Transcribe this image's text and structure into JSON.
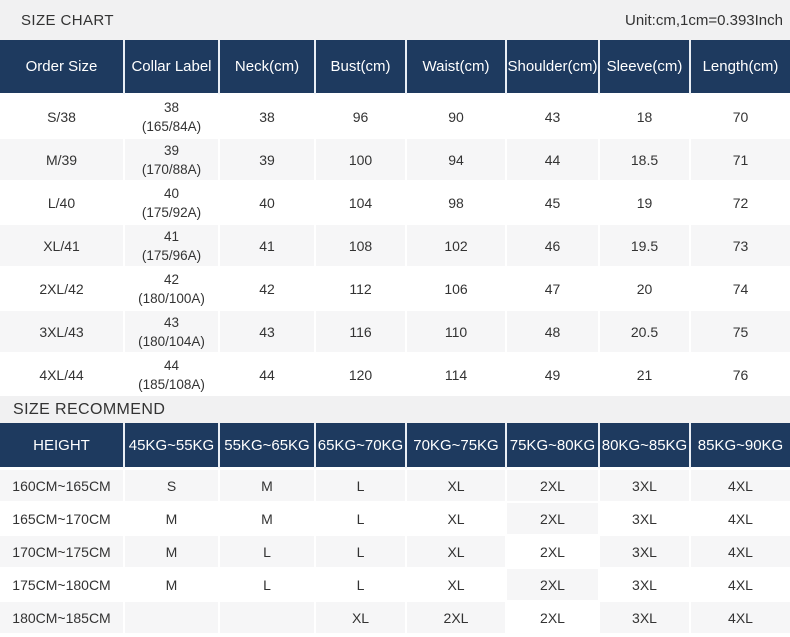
{
  "page": {
    "title": "SIZE CHART",
    "unit_note": "Unit:cm,1cm=0.393Inch",
    "recommend_title": "SIZE RECOMMEND"
  },
  "colors": {
    "header_navy": "#1e3a5f",
    "header_text": "#ffffff",
    "shaded_row": "#f6f6f7",
    "banner_bg": "#f1f1f2",
    "body_text": "#333333"
  },
  "chart_data": [
    {
      "type": "table",
      "name": "size_chart",
      "title": "SIZE CHART",
      "unit_note": "Unit:cm,1cm=0.393Inch",
      "headers": [
        "Order Size",
        "Collar Label",
        "Neck(cm)",
        "Bust(cm)",
        "Waist(cm)",
        "Shoulder(cm)",
        "Sleeve(cm)",
        "Length(cm)"
      ],
      "rows": [
        [
          "S/38",
          [
            "38",
            "(165/84A)"
          ],
          "38",
          "96",
          "90",
          "43",
          "18",
          "70"
        ],
        [
          "M/39",
          [
            "39",
            "(170/88A)"
          ],
          "39",
          "100",
          "94",
          "44",
          "18.5",
          "71"
        ],
        [
          "L/40",
          [
            "40",
            "(175/92A)"
          ],
          "40",
          "104",
          "98",
          "45",
          "19",
          "72"
        ],
        [
          "XL/41",
          [
            "41",
            "(175/96A)"
          ],
          "41",
          "108",
          "102",
          "46",
          "19.5",
          "73"
        ],
        [
          "2XL/42",
          [
            "42",
            "(180/100A)"
          ],
          "42",
          "112",
          "106",
          "47",
          "20",
          "74"
        ],
        [
          "3XL/43",
          [
            "43",
            "(180/104A)"
          ],
          "43",
          "116",
          "110",
          "48",
          "20.5",
          "75"
        ],
        [
          "4XL/44",
          [
            "44",
            "(185/108A)"
          ],
          "44",
          "120",
          "114",
          "49",
          "21",
          "76"
        ]
      ],
      "row_shading": "odd"
    },
    {
      "type": "table",
      "name": "size_recommend",
      "title": "SIZE RECOMMEND",
      "headers": [
        "HEIGHT",
        "45KG~55KG",
        "55KG~65KG",
        "65KG~70KG",
        "70KG~75KG",
        "75KG~80KG",
        "80KG~85KG",
        "85KG~90KG"
      ],
      "rows": [
        [
          "160CM~165CM",
          "S",
          "M",
          "L",
          "XL",
          "2XL",
          "3XL",
          "4XL"
        ],
        [
          "165CM~170CM",
          "M",
          "M",
          "L",
          "XL",
          "2XL",
          "3XL",
          "4XL"
        ],
        [
          "170CM~175CM",
          "M",
          "L",
          "L",
          "XL",
          "2XL",
          "3XL",
          "4XL"
        ],
        [
          "175CM~180CM",
          "M",
          "L",
          "L",
          "XL",
          "2XL",
          "3XL",
          "4XL"
        ],
        [
          "180CM~185CM",
          "",
          "",
          "XL",
          "2XL",
          "2XL",
          "3XL",
          "4XL"
        ]
      ],
      "row_shading": "even",
      "shading_exception": {
        "column_index": 5,
        "start_row": 1
      }
    }
  ]
}
